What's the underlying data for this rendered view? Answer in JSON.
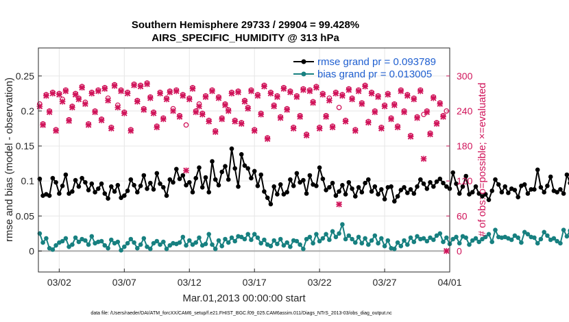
{
  "chart_data": {
    "type": "line",
    "title": "Southern Hemisphere 29733 / 29904 = 99.428%",
    "subtitle": "AIRS_SPECIFIC_HUMIDITY @ 313 hPa",
    "xlabel": "Mar.01,2013 00:00:00 start",
    "ylabel": "rmse and bias (model - observation)",
    "y2label": "# of obs: o=possible; ×=evaluated",
    "footnote": "data file: /Users/raeder/DAI/ATM_forcXX/CAM6_setup/f.e21.FHIST_BGC.f09_025.CAM6assim.011/Diags_NTrS_2013-03/obs_diag_output.nc",
    "x_range": [
      0.4,
      32.0
    ],
    "ylim": [
      -0.03,
      0.29
    ],
    "y2lim": [
      -36,
      348
    ],
    "x_ticks": [
      {
        "value": 2,
        "label": "03/02"
      },
      {
        "value": 7,
        "label": "03/07"
      },
      {
        "value": 12,
        "label": "03/12"
      },
      {
        "value": 17,
        "label": "03/17"
      },
      {
        "value": 22,
        "label": "03/22"
      },
      {
        "value": 27,
        "label": "03/27"
      },
      {
        "value": 32,
        "label": "04/01"
      }
    ],
    "y_ticks": [
      {
        "value": 0,
        "label": "0"
      },
      {
        "value": 0.05,
        "label": "0.05"
      },
      {
        "value": 0.1,
        "label": "0.1"
      },
      {
        "value": 0.15,
        "label": "0.15"
      },
      {
        "value": 0.2,
        "label": "0.2"
      },
      {
        "value": 0.25,
        "label": "0.25"
      }
    ],
    "y2_ticks": [
      {
        "value": 0,
        "label": "0"
      },
      {
        "value": 60,
        "label": "60"
      },
      {
        "value": 120,
        "label": "120"
      },
      {
        "value": 180,
        "label": "180"
      },
      {
        "value": 240,
        "label": "240"
      },
      {
        "value": 300,
        "label": "300"
      }
    ],
    "legend_position": "top-right",
    "grid": true,
    "x_start": 0.5,
    "x_step": 0.25,
    "series": [
      {
        "name": "rmse grand pr = 0.093789",
        "color": "#000000",
        "axis": "left",
        "values": [
          0.103,
          0.079,
          0.081,
          0.079,
          0.104,
          0.098,
          0.082,
          0.093,
          0.109,
          0.082,
          0.085,
          0.101,
          0.092,
          0.104,
          0.098,
          0.087,
          0.096,
          0.084,
          0.089,
          0.096,
          0.082,
          0.075,
          0.092,
          0.085,
          0.094,
          0.076,
          0.079,
          0.086,
          0.102,
          0.094,
          0.084,
          0.093,
          0.108,
          0.089,
          0.097,
          0.088,
          0.111,
          0.096,
          0.091,
          0.079,
          0.102,
          0.098,
          0.117,
          0.103,
          0.108,
          0.094,
          0.098,
          0.084,
          0.104,
          0.119,
          0.091,
          0.105,
          0.084,
          0.128,
          0.102,
          0.094,
          0.113,
          0.121,
          0.102,
          0.146,
          0.118,
          0.092,
          0.138,
          0.122,
          0.118,
          0.104,
          0.114,
          0.093,
          0.109,
          0.085,
          0.076,
          0.067,
          0.092,
          0.081,
          0.095,
          0.081,
          0.084,
          0.102,
          0.093,
          0.111,
          0.098,
          0.101,
          0.082,
          0.108,
          0.095,
          0.093,
          0.119,
          0.103,
          0.087,
          0.091,
          0.097,
          0.079,
          0.085,
          0.094,
          0.081,
          0.098,
          0.089,
          0.078,
          0.091,
          0.084,
          0.097,
          0.102,
          0.085,
          0.092,
          0.081,
          0.088,
          0.074,
          0.091,
          0.092,
          0.071,
          0.078,
          0.087,
          0.091,
          0.083,
          0.088,
          0.082,
          0.092,
          0.102,
          0.096,
          0.089,
          0.098,
          0.092,
          0.099,
          0.103,
          0.097,
          0.092,
          0.089,
          0.112,
          0.096,
          0.082,
          0.092,
          0.107,
          0.081,
          0.084,
          0.092,
          0.082,
          0.078,
          0.081,
          0.073,
          0.086,
          0.102,
          0.095,
          0.084,
          0.092,
          0.083,
          0.089,
          0.087,
          0.077,
          0.093,
          0.095,
          0.082,
          0.088,
          0.088,
          0.116,
          0.091,
          0.084,
          0.093,
          0.106,
          0.086,
          0.084,
          0.088,
          0.082,
          0.109,
          0.097,
          0.101,
          0.074
        ]
      },
      {
        "name": "bias grand pr = 0.013005",
        "color": "#178080",
        "axis": "left",
        "values": [
          0.025,
          0.012,
          0.018,
          0.004,
          0.002,
          0.008,
          0.012,
          0.014,
          0.018,
          0.006,
          0.009,
          0.019,
          0.013,
          0.017,
          0.015,
          0.009,
          0.021,
          0.011,
          0.013,
          0.014,
          0.008,
          0.004,
          0.016,
          0.011,
          0.013,
          0.001,
          0.006,
          0.011,
          0.017,
          0.012,
          0.004,
          0.009,
          0.018,
          0.006,
          0.003,
          0.011,
          0.014,
          0.009,
          0.013,
          0.003,
          0.008,
          0.011,
          0.01,
          0.012,
          0.02,
          0.008,
          0.015,
          0.009,
          0.012,
          0.019,
          0.008,
          0.01,
          0.024,
          0.009,
          0.003,
          0.015,
          0.007,
          0.017,
          0.012,
          0.019,
          0.014,
          0.021,
          0.02,
          0.017,
          0.024,
          0.016,
          0.024,
          0.019,
          0.011,
          0.016,
          0.009,
          0.007,
          0.015,
          0.01,
          0.017,
          0.008,
          0.012,
          0.006,
          0.015,
          0.014,
          0.009,
          0.003,
          0.017,
          0.02,
          0.011,
          0.024,
          0.014,
          0.018,
          0.024,
          0.016,
          0.028,
          0.02,
          0.025,
          0.038,
          0.017,
          0.022,
          0.017,
          0.012,
          0.02,
          0.011,
          0.018,
          0.009,
          0.015,
          0.022,
          0.011,
          0.018,
          0.007,
          0.015,
          0.004,
          0.003,
          0.012,
          0.007,
          0.015,
          0.009,
          0.019,
          0.013,
          0.021,
          0.017,
          0.018,
          0.014,
          0.019,
          0.016,
          0.022,
          0.025,
          0.013,
          0.019,
          0.01,
          0.017,
          0.02,
          0.011,
          0.021,
          0.019,
          0.009,
          0.015,
          0.018,
          0.013,
          0.017,
          0.02,
          0.024,
          0.013,
          0.03,
          0.02,
          0.019,
          0.02,
          0.018,
          0.016,
          0.022,
          0.019,
          0.012,
          0.027,
          0.024,
          0.02,
          0.019,
          0.011,
          0.017,
          0.027,
          0.022,
          0.016,
          0.018,
          0.014,
          0.011,
          0.03,
          0.021,
          0.029,
          0.022,
          0.024,
          0.011,
          0.008
        ]
      }
    ],
    "obs_color": "#d0145a",
    "obs_series": [
      {
        "name": "# of obs possible",
        "marker": "o",
        "x": [
          0.5,
          0.75,
          1.0,
          1.25,
          1.5,
          1.75,
          2.0,
          2.25,
          2.5,
          2.75,
          3.0,
          3.25,
          3.5,
          3.75,
          4.0,
          4.25,
          4.5,
          4.75,
          5.0,
          5.25,
          5.5,
          5.75,
          6.0,
          6.25,
          6.5,
          6.75,
          7.0,
          7.25,
          7.5,
          7.75,
          8.0,
          8.25,
          8.5,
          8.75,
          9.0,
          9.25,
          9.5,
          9.75,
          10.0,
          10.25,
          10.5,
          10.75,
          11.0,
          11.25,
          11.5,
          11.75,
          12.0,
          12.25,
          12.5,
          12.75,
          13.0,
          13.25,
          13.5,
          13.75,
          14.0,
          14.25,
          14.5,
          14.75,
          15.0,
          15.25,
          15.5,
          15.75,
          16.0,
          16.25,
          16.5,
          16.75,
          17.0,
          17.25,
          17.5,
          17.75,
          18.0,
          18.25,
          18.5,
          18.75,
          19.0,
          19.25,
          19.5,
          19.75,
          20.0,
          20.25,
          20.5,
          20.75,
          21.0,
          21.25,
          21.5,
          21.75,
          22.0,
          22.25,
          22.5,
          22.75,
          23.0,
          23.25,
          23.5,
          23.75,
          24.0,
          24.25,
          24.5,
          24.75,
          25.0,
          25.25,
          25.5,
          25.75,
          26.0,
          26.25,
          26.5,
          26.75,
          27.0,
          27.25,
          27.5,
          27.75,
          28.0,
          28.25,
          28.5,
          28.75,
          29.0,
          29.25,
          29.5,
          29.75,
          30.0,
          30.25,
          30.5,
          30.75,
          31.0,
          31.25,
          31.5,
          31.75
        ],
        "values": [
          252,
          218,
          268,
          240,
          272,
          208,
          270,
          260,
          276,
          225,
          248,
          270,
          262,
          282,
          255,
          218,
          272,
          240,
          276,
          226,
          280,
          262,
          212,
          285,
          250,
          276,
          238,
          272,
          208,
          286,
          258,
          284,
          244,
          288,
          264,
          238,
          214,
          272,
          228,
          262,
          274,
          244,
          276,
          232,
          268,
          216,
          262,
          280,
          240,
          252,
          236,
          266,
          224,
          276,
          206,
          264,
          228,
          252,
          242,
          272,
          224,
          274,
          220,
          258,
          246,
          276,
          208,
          268,
          236,
          284,
          194,
          272,
          250,
          266,
          230,
          280,
          244,
          274,
          212,
          266,
          232,
          278,
          200,
          276,
          256,
          282,
          212,
          270,
          232,
          262,
          214,
          272,
          246,
          268,
          224,
          278,
          262,
          208,
          276,
          254,
          284,
          222,
          272,
          240,
          266,
          212,
          250,
          270,
          228,
          252,
          214,
          276,
          240,
          268,
          198,
          262,
          230,
          276,
          234,
          240,
          202,
          264,
          220,
          254,
          232,
          240
        ]
      },
      {
        "name": "# of obs evaluated",
        "marker": "x",
        "x": [
          0.5,
          0.75,
          1.0,
          1.25,
          1.5,
          1.75,
          2.0,
          2.25,
          2.5,
          2.75,
          3.0,
          3.25,
          3.5,
          3.75,
          4.0,
          4.25,
          4.5,
          4.75,
          5.0,
          5.25,
          5.5,
          5.75,
          6.0,
          6.25,
          6.5,
          6.75,
          7.0,
          7.25,
          7.5,
          7.75,
          8.0,
          8.25,
          8.5,
          8.75,
          9.0,
          9.25,
          9.5,
          9.75,
          10.0,
          10.25,
          10.5,
          10.75,
          11.0,
          11.25,
          11.5,
          11.75,
          12.0,
          12.25,
          12.5,
          12.75,
          13.0,
          13.25,
          13.5,
          13.75,
          14.0,
          14.25,
          14.5,
          14.75,
          15.0,
          15.25,
          15.5,
          15.75,
          16.0,
          16.25,
          16.5,
          16.75,
          17.0,
          17.25,
          17.5,
          17.75,
          18.0,
          18.25,
          18.5,
          18.75,
          19.0,
          19.25,
          19.5,
          19.75,
          20.0,
          20.25,
          20.5,
          20.75,
          21.0,
          21.25,
          21.5,
          21.75,
          22.0,
          22.25,
          22.5,
          22.75,
          23.0,
          23.25,
          23.5,
          23.75,
          24.0,
          24.25,
          24.5,
          24.75,
          25.0,
          25.25,
          25.5,
          25.75,
          26.0,
          26.25,
          26.5,
          26.75,
          27.0,
          27.25,
          27.5,
          27.75,
          28.0,
          28.25,
          28.5,
          28.75,
          29.0,
          29.25,
          29.5,
          29.75,
          30.0,
          30.25,
          30.5,
          30.75,
          31.0,
          31.25,
          31.5,
          31.75
        ],
        "values": [
          248,
          216,
          266,
          238,
          270,
          206,
          268,
          256,
          274,
          223,
          246,
          268,
          260,
          280,
          252,
          216,
          270,
          238,
          274,
          224,
          278,
          258,
          210,
          283,
          246,
          274,
          236,
          270,
          206,
          284,
          256,
          282,
          242,
          286,
          262,
          236,
          212,
          270,
          226,
          260,
          272,
          240,
          274,
          230,
          266,
          138,
          260,
          278,
          238,
          248,
          234,
          264,
          222,
          274,
          204,
          262,
          226,
          250,
          240,
          270,
          222,
          272,
          218,
          256,
          244,
          274,
          206,
          266,
          234,
          282,
          192,
          270,
          248,
          264,
          228,
          278,
          242,
          272,
          210,
          264,
          230,
          276,
          198,
          274,
          254,
          280,
          210,
          268,
          230,
          258,
          212,
          270,
          80,
          266,
          222,
          276,
          260,
          206,
          274,
          252,
          282,
          220,
          270,
          238,
          264,
          210,
          248,
          268,
          226,
          250,
          212,
          274,
          238,
          266,
          196,
          260,
          228,
          274,
          158,
          238,
          200,
          262,
          218,
          252,
          230,
          0
        ]
      }
    ]
  }
}
